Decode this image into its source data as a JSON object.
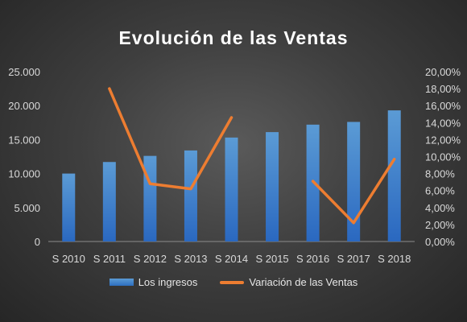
{
  "chart_data": {
    "type": "bar",
    "title": "Evolución de las Ventas",
    "categories": [
      "S 2010",
      "S 2011",
      "S 2012",
      "S 2013",
      "S 2014",
      "S 2015",
      "S 2016",
      "S 2017",
      "S 2018"
    ],
    "series": [
      {
        "name": "Los ingresos",
        "type": "bar",
        "axis": "left",
        "color": "#2e75d6",
        "values": [
          10000,
          11700,
          12600,
          13400,
          15300,
          16100,
          17200,
          17600,
          19300
        ]
      },
      {
        "name": "Variación de las Ventas",
        "type": "line",
        "axis": "right",
        "color": "#ed7d31",
        "values": [
          null,
          0.18,
          0.068,
          0.062,
          0.146,
          null,
          0.071,
          0.022,
          0.097
        ]
      }
    ],
    "ylim_left": [
      0,
      25000
    ],
    "ylim_right": [
      0,
      0.2
    ],
    "left_ticks": [
      {
        "value": 0,
        "label": "0"
      },
      {
        "value": 5000,
        "label": "5.000"
      },
      {
        "value": 10000,
        "label": "10.000"
      },
      {
        "value": 15000,
        "label": "15.000"
      },
      {
        "value": 20000,
        "label": "20.000"
      },
      {
        "value": 25000,
        "label": "25.000"
      }
    ],
    "right_ticks": [
      {
        "value": 0,
        "label": "0,00%"
      },
      {
        "value": 0.02,
        "label": "2,00%"
      },
      {
        "value": 0.04,
        "label": "4,00%"
      },
      {
        "value": 0.06,
        "label": "6,00%"
      },
      {
        "value": 0.08,
        "label": "8,00%"
      },
      {
        "value": 0.1,
        "label": "10,00%"
      },
      {
        "value": 0.12,
        "label": "12,00%"
      },
      {
        "value": 0.14,
        "label": "14,00%"
      },
      {
        "value": 0.16,
        "label": "16,00%"
      },
      {
        "value": 0.18,
        "label": "18,00%"
      },
      {
        "value": 0.2,
        "label": "20,00%"
      }
    ],
    "grid": false,
    "legend_position": "bottom"
  }
}
